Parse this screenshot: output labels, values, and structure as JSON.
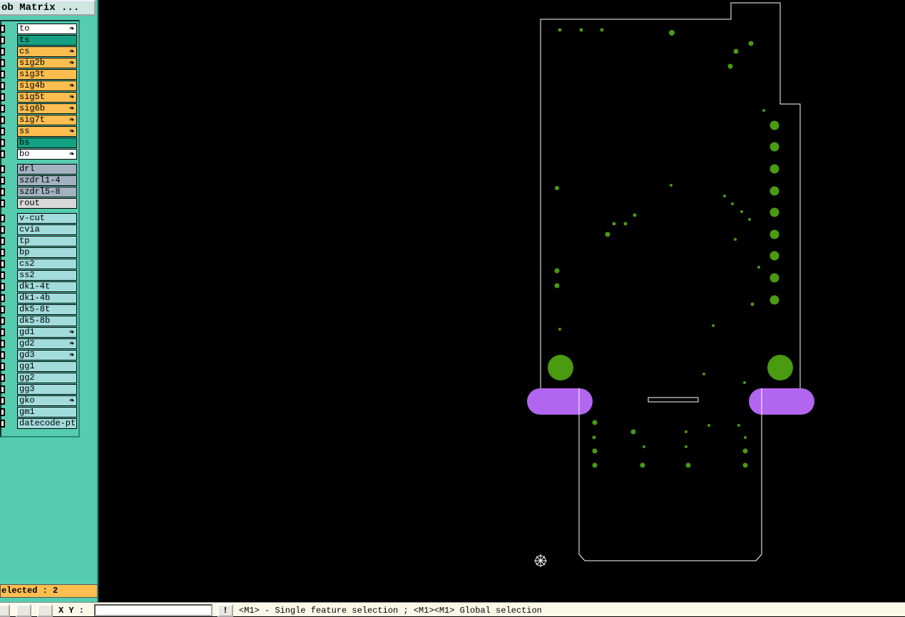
{
  "header": {
    "title": "ob Matrix ..."
  },
  "layer_groups": [
    {
      "layers": [
        {
          "name": "to",
          "color": "#ffffff",
          "marked": true
        },
        {
          "name": "ts",
          "color": "#14a082",
          "marked": false
        },
        {
          "name": "cs",
          "color": "#fcbe50",
          "marked": true
        },
        {
          "name": "sig2b",
          "color": "#fcbe50",
          "marked": true
        },
        {
          "name": "sig3t",
          "color": "#fcbe50",
          "marked": false
        },
        {
          "name": "sig4b",
          "color": "#fcbe50",
          "marked": true
        },
        {
          "name": "sig5t",
          "color": "#fcbe50",
          "marked": true
        },
        {
          "name": "sig6b",
          "color": "#fcbe50",
          "marked": true
        },
        {
          "name": "sig7t",
          "color": "#fcbe50",
          "marked": true
        },
        {
          "name": "ss",
          "color": "#fcbe50",
          "marked": true
        },
        {
          "name": "bs",
          "color": "#14a082",
          "marked": false
        },
        {
          "name": "bo",
          "color": "#ffffff",
          "marked": true
        }
      ]
    },
    {
      "layers": [
        {
          "name": "drl",
          "color": "#a2b2c0",
          "marked": false
        },
        {
          "name": "szdrl1-4",
          "color": "#a2b2c0",
          "marked": false
        },
        {
          "name": "szdrl5-8",
          "color": "#a2b2c0",
          "marked": false
        },
        {
          "name": "rout",
          "color": "#d8d8d8",
          "marked": false
        }
      ]
    },
    {
      "layers": [
        {
          "name": "v-cut",
          "color": "#a2dcdc",
          "marked": false
        },
        {
          "name": "cvia",
          "color": "#a2dcdc",
          "marked": false
        },
        {
          "name": "tp",
          "color": "#a2dcdc",
          "marked": false
        },
        {
          "name": "bp",
          "color": "#a2dcdc",
          "marked": false
        },
        {
          "name": "cs2",
          "color": "#a2dcdc",
          "marked": false
        },
        {
          "name": "ss2",
          "color": "#a2dcdc",
          "marked": false
        },
        {
          "name": "dk1-4t",
          "color": "#a2dcdc",
          "marked": false
        },
        {
          "name": "dk1-4b",
          "color": "#a2dcdc",
          "marked": false
        },
        {
          "name": "dk5-8t",
          "color": "#a2dcdc",
          "marked": false
        },
        {
          "name": "dk5-8b",
          "color": "#a2dcdc",
          "marked": false
        },
        {
          "name": "gd1",
          "color": "#a2dcdc",
          "marked": true
        },
        {
          "name": "gd2",
          "color": "#a2dcdc",
          "marked": true
        },
        {
          "name": "gd3",
          "color": "#a2dcdc",
          "marked": true
        },
        {
          "name": "gg1",
          "color": "#a2dcdc",
          "marked": false
        },
        {
          "name": "gg2",
          "color": "#a2dcdc",
          "marked": false
        },
        {
          "name": "gg3",
          "color": "#a2dcdc",
          "marked": false
        },
        {
          "name": "gko",
          "color": "#a2dcdc",
          "marked": true
        },
        {
          "name": "gm1",
          "color": "#a2dcdc",
          "marked": false
        },
        {
          "name": "datecode-pt",
          "color": "#a2dcdc",
          "marked": false
        }
      ]
    }
  ],
  "status": {
    "selected": "elected : 2"
  },
  "toolbar": {
    "xy_label": "X Y :",
    "alert": "!",
    "message": "<M1> - Single feature selection ; <M1><M1> Global selection"
  }
}
